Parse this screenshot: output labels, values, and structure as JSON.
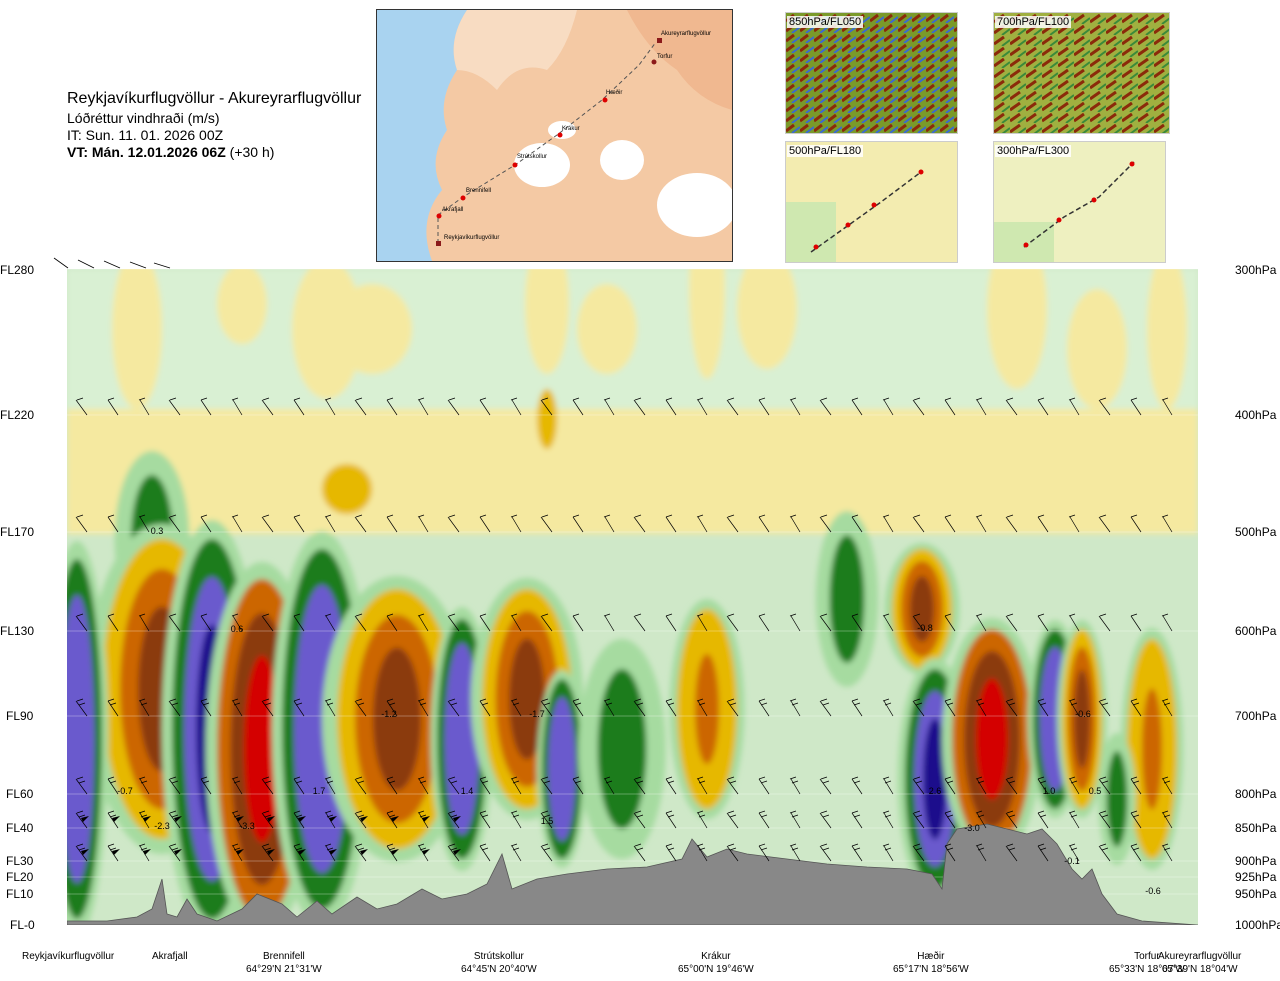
{
  "header": {
    "title": "Reykjavíkurflugvöllur - Akureyrarflugvöllur",
    "subtitle": "Lóðréttur vindhraði (m/s)",
    "issue_time": "IT: Sun. 11. 01. 2026 00Z",
    "valid_time_bold": "VT: Mán. 12.01.2026 06Z",
    "valid_time_offset": "(+30 h)"
  },
  "route_map": {
    "points": [
      "Akureyrarflugvöllur",
      "Torfur",
      "Hæðir",
      "Krákur",
      "Strútskollur",
      "Brennifell",
      "Akrafjall",
      "Reykjavíkurflugvöllur"
    ]
  },
  "thumbnails": [
    {
      "label": "850hPa/FL050"
    },
    {
      "label": "700hPa/FL100"
    },
    {
      "label": "500hPa/FL180"
    },
    {
      "label": "300hPa/FL300"
    }
  ],
  "chart_data": {
    "type": "heatmap",
    "title": "Reykjavíkurflugvöllur - Akureyrarflugvöllur",
    "variable": "Lóðréttur vindhraði (m/s)",
    "y_levels": [
      {
        "fl": "FL280",
        "hpa": "300hPa"
      },
      {
        "fl": "FL220",
        "hpa": "400hPa"
      },
      {
        "fl": "FL170",
        "hpa": "500hPa"
      },
      {
        "fl": "FL130",
        "hpa": "600hPa"
      },
      {
        "fl": "FL90",
        "hpa": "700hPa"
      },
      {
        "fl": "FL60",
        "hpa": "800hPa"
      },
      {
        "fl": "FL40",
        "hpa": "850hPa"
      },
      {
        "fl": "FL30",
        "hpa": "900hPa"
      },
      {
        "fl": "FL20",
        "hpa": "925hPa"
      },
      {
        "fl": "FL10",
        "hpa": "950hPa"
      },
      {
        "fl": "FL-0",
        "hpa": "1000hPa"
      }
    ],
    "locations": [
      {
        "name": "Reykjavíkurflugvöllur",
        "coord": ""
      },
      {
        "name": "Akrafjall",
        "coord": ""
      },
      {
        "name": "Brennifell",
        "coord": "64°29'N 21°31'W"
      },
      {
        "name": "Strútskollur",
        "coord": "64°45'N 20°40'W"
      },
      {
        "name": "Krákur",
        "coord": "65°00'N 19°46'W"
      },
      {
        "name": "Hæðir",
        "coord": "65°17'N 18°56'W"
      },
      {
        "name": "Torfur",
        "coord": "65°33'N 18°07'W"
      },
      {
        "name": "Akureyrarflugvöllur",
        "coord": "65°39'N 18°04'W"
      }
    ],
    "value_labels": [
      "0.3",
      "0.6",
      "-0.7",
      "-2.3",
      "-3.3",
      "1.7",
      "-1.2",
      "1.4",
      "1.5",
      "-1.7",
      "-0.8",
      "2.6",
      "-3.0",
      "1.0",
      "0.5",
      "-0.6",
      "-0.1",
      "-0.6"
    ],
    "colors": {
      "strong_up": "#1a0a8c",
      "up": "#6a5acd",
      "moderate_up": "#1e7b1e",
      "weak_up": "#a6dba0",
      "faint": "#d9f0d3",
      "weak_down": "#f5e9a0",
      "moderate_down": "#e6b800",
      "down": "#cc6600",
      "strong_down": "#8b3a0f",
      "extreme_down": "#d40000",
      "terrain": "#888888"
    }
  }
}
